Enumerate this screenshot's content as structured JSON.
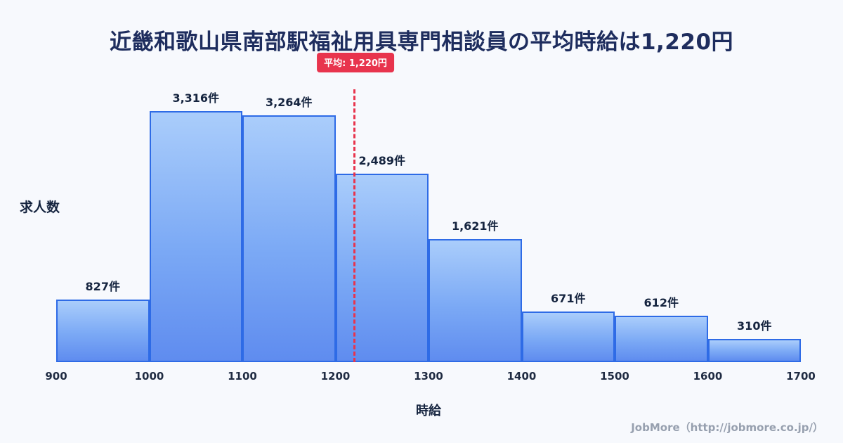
{
  "title": "近畿和歌山県南部駅福祉用具専門相談員の平均時給は1,220円",
  "footer": {
    "credit": "JobMore（http://jobmore.co.jp/）"
  },
  "chart_data": {
    "type": "bar",
    "subtype": "histogram",
    "title": "近畿和歌山県南部駅福祉用具専門相談員の平均時給は1,220円",
    "xlabel": "時給",
    "ylabel": "求人数",
    "bin_edges": [
      900,
      1000,
      1100,
      1200,
      1300,
      1400,
      1500,
      1600,
      1700
    ],
    "values": [
      827,
      3316,
      3264,
      2489,
      1621,
      671,
      612,
      310
    ],
    "value_labels": [
      "827件",
      "3,316件",
      "3,264件",
      "2,489件",
      "1,621件",
      "671件",
      "612件",
      "310件"
    ],
    "ylim": [
      0,
      3316
    ],
    "grid": false,
    "legend": false,
    "average_line": {
      "value": 1220,
      "label": "平均: 1,220円",
      "color": "#e8344d",
      "style": "dashed"
    },
    "colors": {
      "bar_fill_top": "#aacdfb",
      "bar_fill_bottom": "#5f8cef",
      "bar_border": "#2e6be6",
      "title_text": "#1e2d5e",
      "label_text": "#15243f",
      "tick_text": "#1f2b42",
      "background": "#f7f9fd",
      "footer_text": "#97a0af"
    }
  }
}
